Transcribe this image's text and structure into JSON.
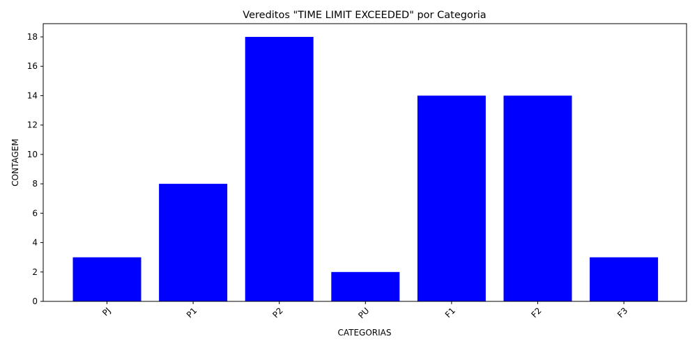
{
  "chart_data": {
    "type": "bar",
    "title": "Vereditos \"TIME LIMIT EXCEEDED\" por Categoria",
    "xlabel": "CATEGORIAS",
    "ylabel": "CONTAGEM",
    "categories": [
      "PJ",
      "P1",
      "P2",
      "PU",
      "F1",
      "F2",
      "F3"
    ],
    "values": [
      3,
      8,
      18,
      2,
      14,
      14,
      3
    ],
    "ylim": [
      0,
      18.9
    ],
    "yticks": [
      0,
      2,
      4,
      6,
      8,
      10,
      12,
      14,
      16,
      18
    ],
    "bar_color": "#0000ff",
    "grid": false,
    "legend": "none"
  }
}
